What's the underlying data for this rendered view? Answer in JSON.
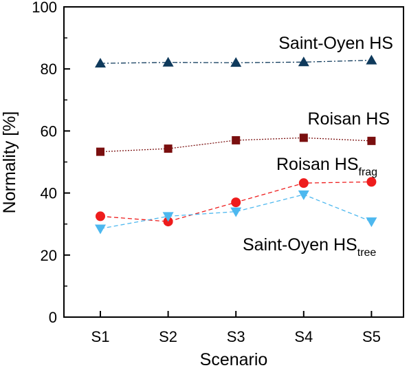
{
  "chart_data": {
    "type": "line",
    "categories": [
      "S1",
      "S2",
      "S3",
      "S4",
      "S5"
    ],
    "xlabel": "Scenario",
    "ylabel": "Normality [%]",
    "ylim": [
      0,
      100
    ],
    "yticks": [
      0,
      20,
      40,
      60,
      80,
      100
    ],
    "grid": false,
    "series": [
      {
        "name": "Saint-Oyen HS",
        "label": {
          "main": "Saint-Oyen HS",
          "sub": ""
        },
        "values": [
          81.8,
          82.1,
          82.0,
          82.2,
          82.8
        ],
        "color": "#0f3a5c",
        "marker": "triangle-up",
        "line_style": "dashdot"
      },
      {
        "name": "Roisan HS",
        "label": {
          "main": "Roisan HS",
          "sub": ""
        },
        "values": [
          53.3,
          54.3,
          57.0,
          57.8,
          56.8
        ],
        "color": "#7a0f0f",
        "marker": "square",
        "line_style": "dotted"
      },
      {
        "name": "Roisan HS_frag",
        "label": {
          "main": "Roisan HS",
          "sub": "frag"
        },
        "values": [
          32.5,
          30.8,
          37.0,
          43.2,
          43.6
        ],
        "color": "#ee1c1c",
        "marker": "circle",
        "line_style": "dashed"
      },
      {
        "name": "Saint-Oyen HS_tree",
        "label": {
          "main": "Saint-Oyen HS",
          "sub": "tree"
        },
        "values": [
          28.5,
          32.5,
          34.0,
          39.5,
          30.8
        ],
        "color": "#4db8ef",
        "marker": "triangle-down",
        "line_style": "dashed"
      }
    ]
  }
}
